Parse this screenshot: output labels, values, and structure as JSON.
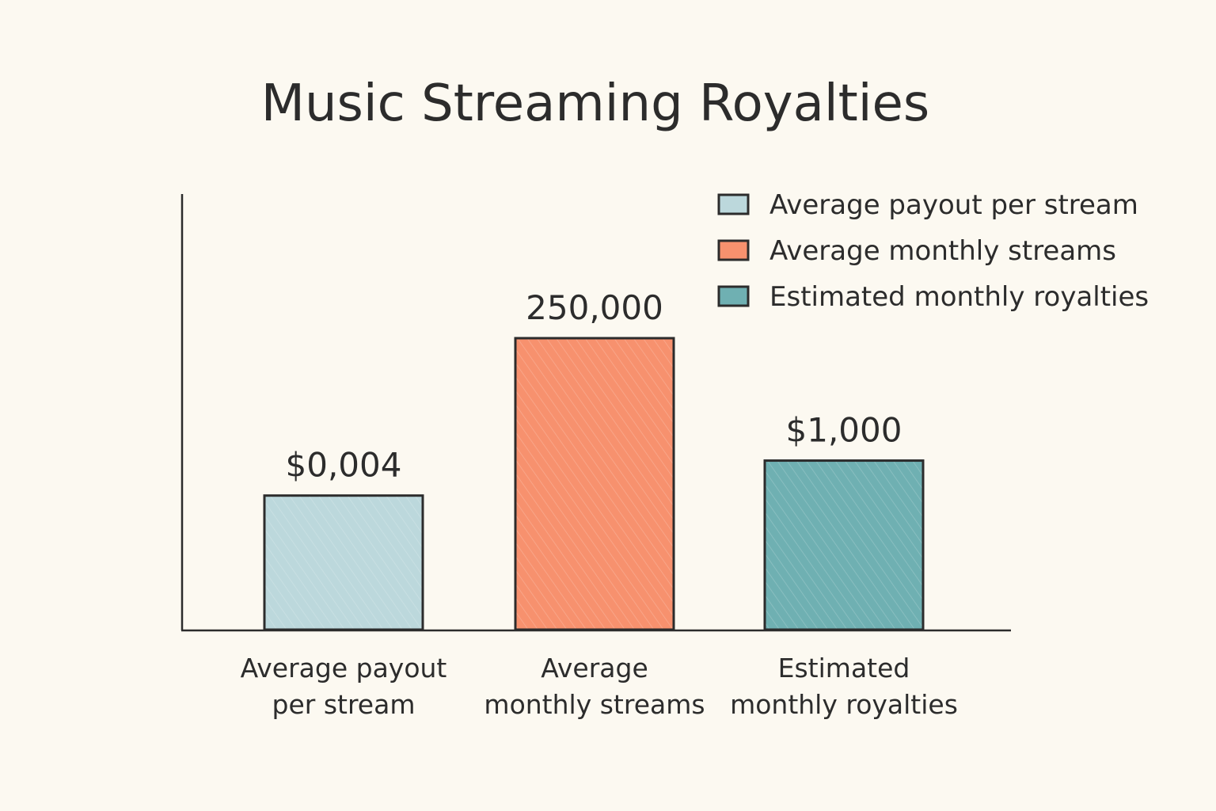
{
  "chart_data": {
    "type": "bar",
    "title": "Music Streaming Royalties",
    "xlabel": "",
    "ylabel": "",
    "grid": false,
    "legend_position": "top-right",
    "categories": [
      [
        "Average payout",
        "per stream"
      ],
      [
        "Average",
        "monthly streams"
      ],
      [
        "Estimated",
        "monthly royalties"
      ]
    ],
    "value_labels": [
      "$0,004",
      "250,000",
      "$1,000"
    ],
    "relative_heights": [
      0.46,
      1.0,
      0.58
    ],
    "series": [
      {
        "name": "Average payout per stream",
        "color": "#bcd8dc",
        "value_label": "$0,004"
      },
      {
        "name": "Average monthly streams",
        "color": "#f7916e",
        "value_label": "250,000"
      },
      {
        "name": "Estimated monthly royalties",
        "color": "#6fb0b2",
        "value_label": "$1,000"
      }
    ]
  }
}
